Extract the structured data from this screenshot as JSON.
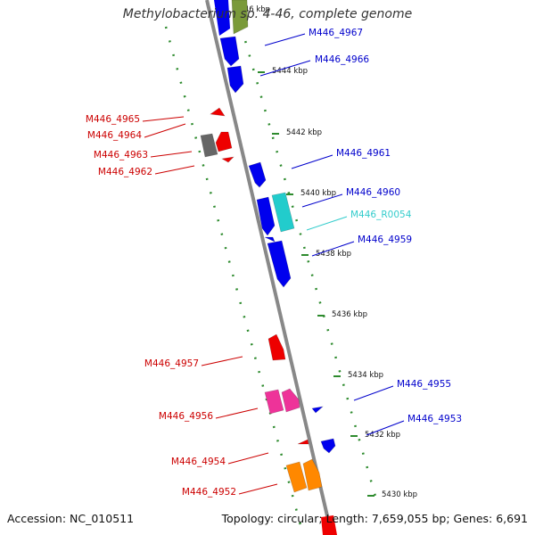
{
  "title": "Methylobacterium sp. 4-46, complete genome",
  "footer": {
    "accession": "Accession: NC_010511",
    "summary": "Topology: circular; Length: 7,659,055 bp; Genes: 6,691"
  },
  "colors": {
    "forward_label": "#0000cc",
    "reverse_label": "#cc0000",
    "rna_label": "#33cccc",
    "tick": "#2e8b2e",
    "backbone": "#888888"
  },
  "ticks": [
    {
      "label": "5446 kbp"
    },
    {
      "label": "5444 kbp"
    },
    {
      "label": "5442 kbp"
    },
    {
      "label": "5440 kbp"
    },
    {
      "label": "5438 kbp"
    },
    {
      "label": "5436 kbp"
    },
    {
      "label": "5434 kbp"
    },
    {
      "label": "5432 kbp"
    },
    {
      "label": "5430 kbp"
    }
  ],
  "genes": [
    {
      "name": "M446_4967",
      "strand": "forward",
      "color": "#7a9a3a"
    },
    {
      "name": "M446_4966",
      "strand": "forward",
      "color": "#0000ee"
    },
    {
      "name": "M446_4965",
      "strand": "reverse",
      "color": "#ee0000"
    },
    {
      "name": "M446_4964",
      "strand": "reverse",
      "color": "#ee0000"
    },
    {
      "name": "M446_4963",
      "strand": "reverse",
      "color": "#666666"
    },
    {
      "name": "M446_4962",
      "strand": "reverse",
      "color": "#ee0000"
    },
    {
      "name": "M446_4961",
      "strand": "forward",
      "color": "#0000ee"
    },
    {
      "name": "M446_4960",
      "strand": "forward",
      "color": "#0000ee"
    },
    {
      "name": "M446_R0054",
      "strand": "forward",
      "color": "#22cccc"
    },
    {
      "name": "M446_4959",
      "strand": "forward",
      "color": "#0000ee"
    },
    {
      "name": "M446_4957",
      "strand": "reverse",
      "color": "#ee0000"
    },
    {
      "name": "M446_4956",
      "strand": "reverse",
      "color": "#ee3399"
    },
    {
      "name": "M446_4955",
      "strand": "forward",
      "color": "#0000ee"
    },
    {
      "name": "M446_4953",
      "strand": "forward",
      "color": "#0000ee"
    },
    {
      "name": "M446_4954",
      "strand": "reverse",
      "color": "#ee0000"
    },
    {
      "name": "M446_4952",
      "strand": "reverse",
      "color": "#ff8800"
    }
  ]
}
